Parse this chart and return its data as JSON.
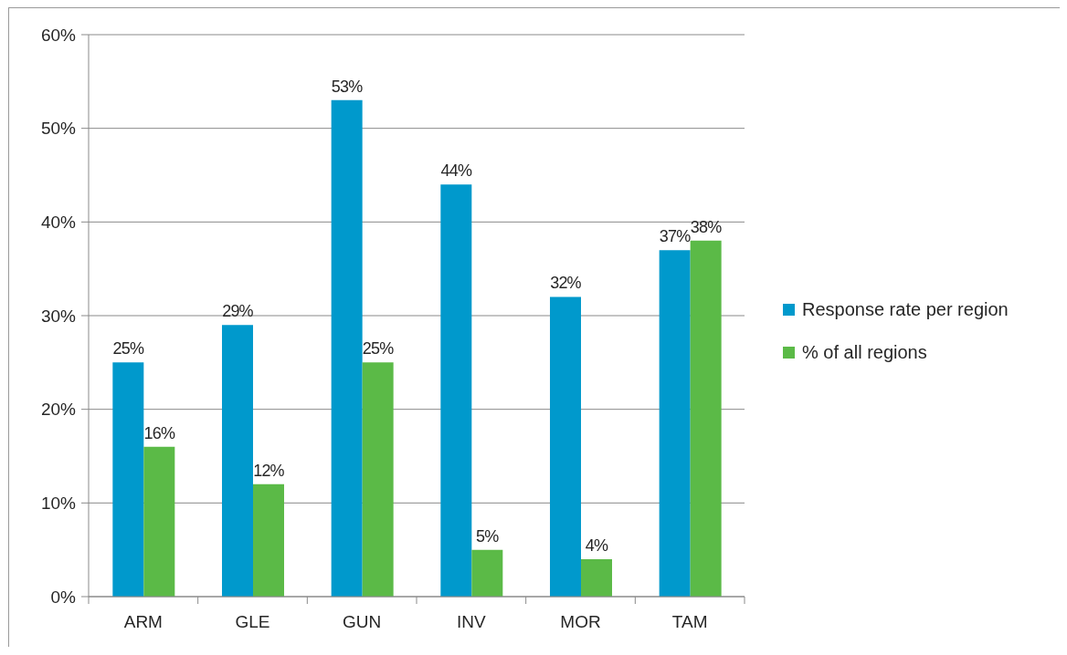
{
  "chart_data": {
    "type": "bar",
    "categories": [
      "ARM",
      "GLE",
      "GUN",
      "INV",
      "MOR",
      "TAM"
    ],
    "series": [
      {
        "name": "Response rate per region",
        "color": "#0099cc",
        "values": [
          25,
          29,
          53,
          44,
          32,
          37
        ],
        "value_labels": [
          "25%",
          "29%",
          "53%",
          "44%",
          "32%",
          "37%"
        ]
      },
      {
        "name": "% of all regions",
        "color": "#5bba47",
        "values": [
          16,
          12,
          25,
          5,
          4,
          38
        ],
        "value_labels": [
          "16%",
          "12%",
          "25%",
          "5%",
          "4%",
          "38%"
        ]
      }
    ],
    "ylim": [
      0,
      60
    ],
    "yticks": [
      {
        "value": 0,
        "label": "0%"
      },
      {
        "value": 10,
        "label": "10%"
      },
      {
        "value": 20,
        "label": "20%"
      },
      {
        "value": 30,
        "label": "30%"
      },
      {
        "value": 40,
        "label": "40%"
      },
      {
        "value": 50,
        "label": "50%"
      },
      {
        "value": 60,
        "label": "60%"
      }
    ],
    "grid": "y",
    "legend": "right"
  }
}
